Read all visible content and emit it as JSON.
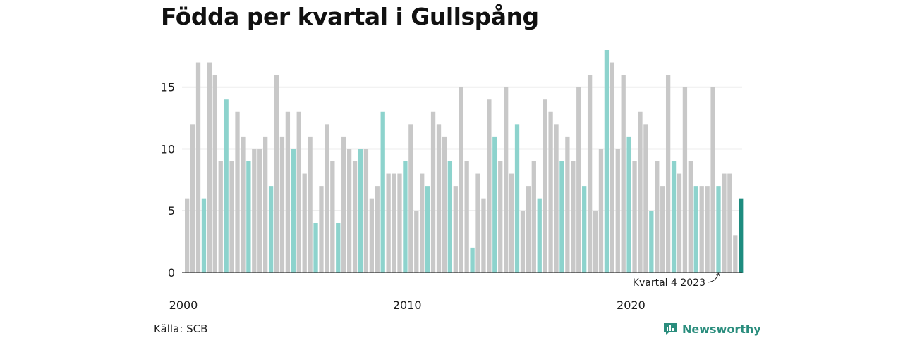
{
  "title": "Födda per kvartal i Gullspång",
  "source": "Källa: SCB",
  "brand": "Newsworthy",
  "colors": {
    "bar": "#c8c8c8",
    "highlight_quarter": "#8dd3cd",
    "latest": "#1e8c7f",
    "grid": "#dedede",
    "axis": "#333333",
    "brand": "#2a8d7d"
  },
  "chart_data": {
    "type": "bar",
    "ylim": [
      0,
      18
    ],
    "yticks": [
      0,
      5,
      10,
      15
    ],
    "xticks": [
      {
        "label": "2000",
        "year": 2000
      },
      {
        "label": "2010",
        "year": 2010
      },
      {
        "label": "2020",
        "year": 2020
      }
    ],
    "start": {
      "year": 2000,
      "quarter": 1
    },
    "highlight_quarter": 4,
    "values": [
      6,
      12,
      17,
      6,
      17,
      16,
      9,
      14,
      9,
      13,
      11,
      9,
      10,
      10,
      11,
      7,
      16,
      11,
      13,
      10,
      13,
      8,
      11,
      4,
      7,
      12,
      9,
      4,
      11,
      10,
      9,
      10,
      10,
      6,
      7,
      13,
      8,
      8,
      8,
      9,
      12,
      5,
      8,
      7,
      13,
      12,
      11,
      9,
      7,
      15,
      9,
      2,
      8,
      6,
      14,
      11,
      9,
      15,
      8,
      12,
      5,
      7,
      9,
      6,
      14,
      13,
      12,
      9,
      11,
      9,
      15,
      7,
      16,
      5,
      10,
      18,
      17,
      10,
      16,
      11,
      9,
      13,
      12,
      5,
      9,
      7,
      16,
      9,
      8,
      15,
      9,
      7,
      7,
      7,
      15,
      7,
      8,
      8,
      3,
      6
    ],
    "annotation": {
      "text": "Kvartal 4 2023"
    }
  }
}
